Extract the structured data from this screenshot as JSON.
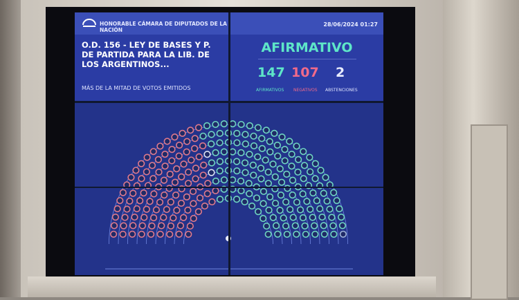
{
  "header": {
    "institution": "HONORABLE CÁMARA DE DIPUTADOS DE LA NACIÓN",
    "datetime": "28/06/2024 01:27"
  },
  "motion": {
    "title": "O.D. 156 - LEY DE BASES Y P. DE PARTIDA PARA LA LIB. DE LOS ARGENTINOS...",
    "majority": "MÁS DE LA MITAD DE VOTOS EMITIDOS"
  },
  "result": {
    "outcome": "AFIRMATIVO",
    "afirmativos": {
      "count": "147",
      "label": "AFIRMATIVOS",
      "color": "#5ee6c8"
    },
    "negativos": {
      "count": "107",
      "label": "NEGATIVOS",
      "color": "#f06a8a"
    },
    "abstenciones": {
      "count": "2",
      "label": "ABSTENCIONES",
      "color": "#e8ecff"
    }
  },
  "seats": {
    "total": 257,
    "colors": {
      "afirmativo": "#6fd6c2",
      "negativo": "#e07a8c",
      "abstencion": "#dfe6f5",
      "ausente": "#9fb3d8"
    }
  }
}
